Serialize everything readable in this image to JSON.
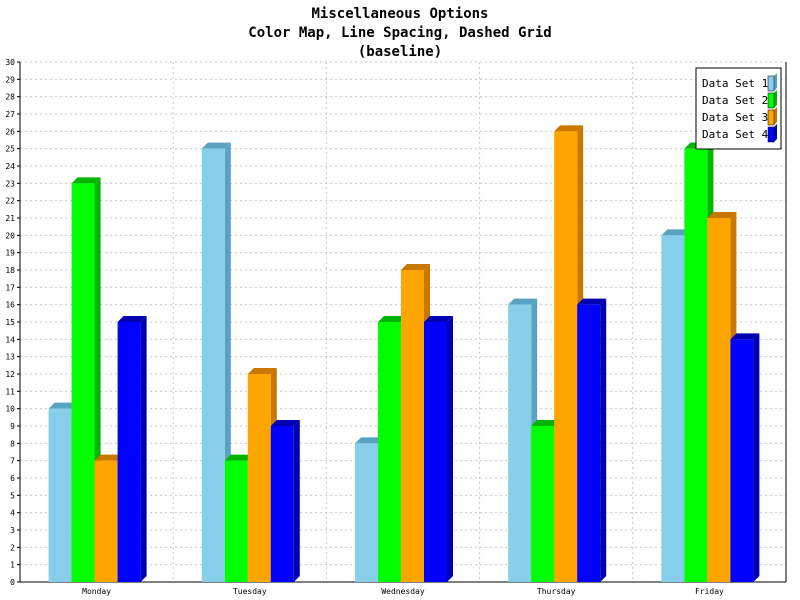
{
  "chart_data": {
    "type": "bar",
    "title_lines": [
      "Miscellaneous Options",
      "Color Map, Line Spacing, Dashed Grid",
      "(baseline)"
    ],
    "xlabel": "",
    "ylabel": "",
    "categories": [
      "Monday",
      "Tuesday",
      "Wednesday",
      "Thursday",
      "Friday"
    ],
    "ylim": [
      0,
      30
    ],
    "yticks": [
      "0",
      "1",
      "2",
      "3",
      "4",
      "5",
      "6",
      "7",
      "8",
      "9",
      "10",
      "11",
      "12",
      "13",
      "14",
      "15",
      "16",
      "17",
      "18",
      "19",
      "20",
      "21",
      "22",
      "23",
      "24",
      "25",
      "26",
      "27",
      "28",
      "29",
      "30"
    ],
    "grid": "dashed",
    "bar_style": "3d",
    "legend_position": "top-right",
    "series": [
      {
        "name": "Data Set 1",
        "color": "#87ceeb",
        "shade": "#5aa3c0",
        "values": [
          10,
          25,
          8,
          16,
          20
        ]
      },
      {
        "name": "Data Set 2",
        "color": "#00ff00",
        "shade": "#00b400",
        "values": [
          23,
          7,
          15,
          9,
          25
        ]
      },
      {
        "name": "Data Set 3",
        "color": "#ffa500",
        "shade": "#c87800",
        "values": [
          7,
          12,
          18,
          26,
          21
        ]
      },
      {
        "name": "Data Set 4",
        "color": "#0000ff",
        "shade": "#0000b0",
        "values": [
          15,
          9,
          15,
          16,
          14
        ]
      }
    ]
  }
}
